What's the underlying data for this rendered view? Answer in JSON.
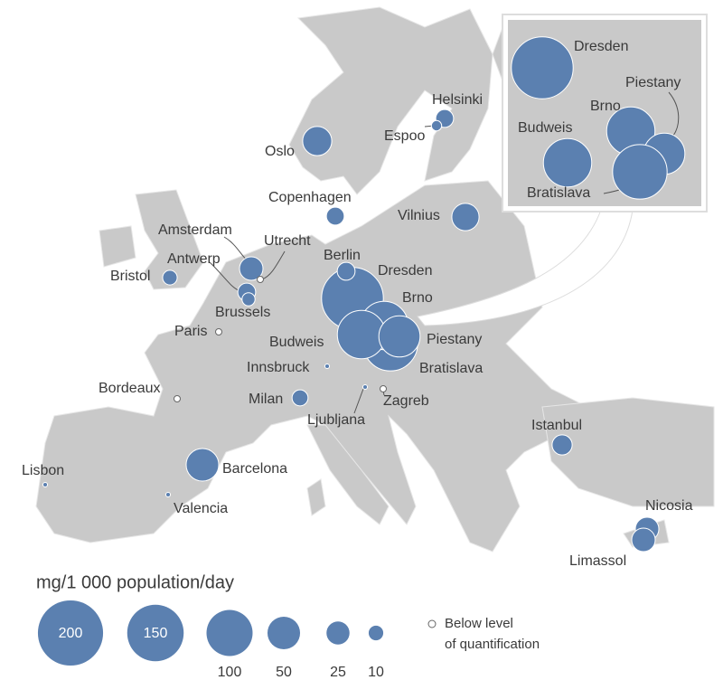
{
  "bubble_color": "#5b80b0",
  "cities": [
    {
      "name": "Dresden",
      "value": 180
    },
    {
      "name": "Brno",
      "value": 110
    },
    {
      "name": "Piestany",
      "value": 80
    },
    {
      "name": "Budweis",
      "value": 110
    },
    {
      "name": "Bratislava",
      "value": 140
    },
    {
      "name": "Berlin",
      "value": 15
    },
    {
      "name": "Oslo",
      "value": 40
    },
    {
      "name": "Helsinki",
      "value": 15
    },
    {
      "name": "Espoo",
      "value": 5
    },
    {
      "name": "Copenhagen",
      "value": 15
    },
    {
      "name": "Vilnius",
      "value": 35
    },
    {
      "name": "Amsterdam",
      "value": 26
    },
    {
      "name": "Utrecht",
      "value": null
    },
    {
      "name": "Antwerp",
      "value": 15
    },
    {
      "name": "Brussels",
      "value": 8
    },
    {
      "name": "Bristol",
      "value": 10
    },
    {
      "name": "Paris",
      "value": null
    },
    {
      "name": "Bordeaux",
      "value": null
    },
    {
      "name": "Innsbruck",
      "value": 1
    },
    {
      "name": "Milan",
      "value": 12
    },
    {
      "name": "Ljubljana",
      "value": 1
    },
    {
      "name": "Zagreb",
      "value": null
    },
    {
      "name": "Barcelona",
      "value": 50
    },
    {
      "name": "Lisbon",
      "value": 1
    },
    {
      "name": "Valencia",
      "value": 1
    },
    {
      "name": "Istanbul",
      "value": 19
    },
    {
      "name": "Nicosia",
      "value": 26
    },
    {
      "name": "Limassol",
      "value": 26
    }
  ],
  "inset_cities": [
    0,
    1,
    2,
    3,
    4
  ],
  "legend": {
    "title": "mg/1 000 population/day",
    "sizes": [
      200,
      150,
      100,
      50,
      25,
      10
    ],
    "below_loq": [
      "Below level",
      "of quantification"
    ]
  }
}
